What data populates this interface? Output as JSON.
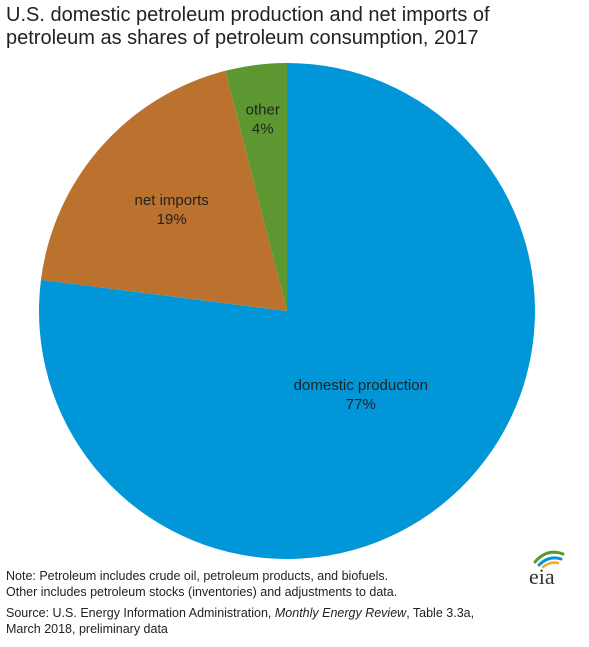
{
  "title": {
    "line1": "U.S. domestic petroleum production and net imports of",
    "line2": "petroleum as shares of petroleum consumption, 2017"
  },
  "chart_data": {
    "type": "pie",
    "title": "U.S. domestic petroleum production and net imports of petroleum as shares of petroleum consumption, 2017",
    "slices": [
      {
        "label": "domestic production",
        "value": 77,
        "pct_label": "77%",
        "color": "#0096d7"
      },
      {
        "label": "net imports",
        "value": 19,
        "pct_label": "19%",
        "color": "#bc722f"
      },
      {
        "label": "other",
        "value": 4,
        "pct_label": "4%",
        "color": "#5d9732"
      }
    ],
    "start": "12 o'clock",
    "direction": "clockwise"
  },
  "notes": {
    "line1": "Note: Petroleum includes crude oil, petroleum products, and biofuels.",
    "line2": "Other includes petroleum stocks (inventories) and adjustments to data."
  },
  "source": {
    "prefix": "Source: U.S. Energy Information Administration, ",
    "publication": "Monthly Energy Review",
    "suffix": ", Table 3.3a,",
    "line2": "March 2018, preliminary data"
  },
  "logo": {
    "text": "eia",
    "colors": [
      "#5d9732",
      "#0096d7",
      "#f5a623"
    ]
  }
}
